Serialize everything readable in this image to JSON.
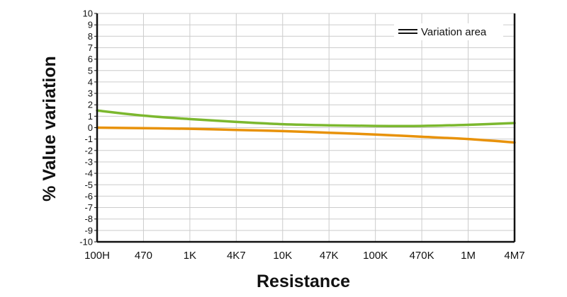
{
  "chart_data": {
    "type": "line",
    "xlabel": "Resistance",
    "ylabel": "% Value variation",
    "categories": [
      "100H",
      "470",
      "1K",
      "4K7",
      "10K",
      "47K",
      "100K",
      "470K",
      "1M",
      "4M7"
    ],
    "yticks": [
      "10",
      "9",
      "8",
      "7",
      "6",
      "5",
      "4",
      "3",
      "2",
      "1",
      "0",
      "-1",
      "-2",
      "-3",
      "-4",
      "-5",
      "-6",
      "-7",
      "-8",
      "-9",
      "-10"
    ],
    "ylim": [
      -10,
      10
    ],
    "grid": true,
    "legend": {
      "placement": "top-right",
      "label": "Variation area"
    },
    "series": [
      {
        "color": "#7cb82f",
        "values": [
          1.5,
          1.05,
          0.75,
          0.5,
          0.3,
          0.2,
          0.15,
          0.15,
          0.25,
          0.4
        ]
      },
      {
        "color": "#e8920a",
        "values": [
          0.0,
          -0.05,
          -0.1,
          -0.2,
          -0.3,
          -0.45,
          -0.6,
          -0.8,
          -1.0,
          -1.3
        ]
      }
    ],
    "colors": {
      "axis": "#111111",
      "grid": "#cccccc",
      "legend_line": "#111111"
    }
  }
}
